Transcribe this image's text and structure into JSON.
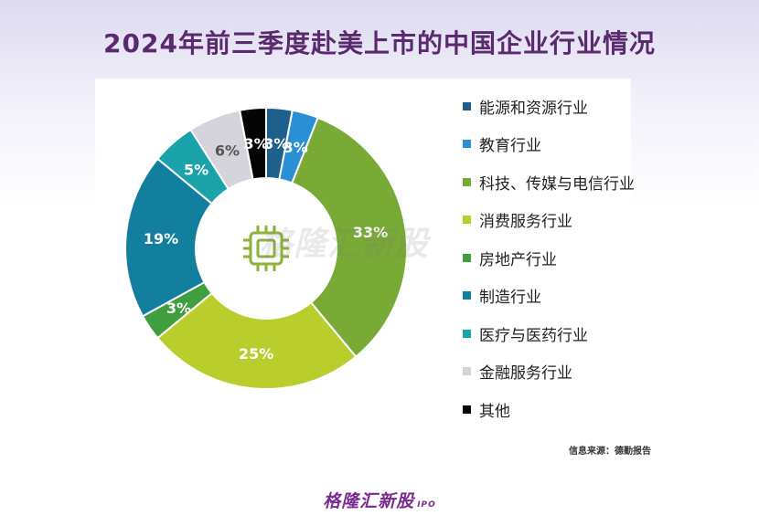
{
  "title": "2024年前三季度赴美上市的中国企业行业情况",
  "source": "信息来源：德勤报告",
  "logo": {
    "main": "格隆汇新股",
    "sub": "IPO"
  },
  "watermark": "格隆汇新股",
  "center_icon": "chip-icon",
  "chart_data": {
    "type": "pie",
    "donut": true,
    "legend_position": "right",
    "label_unit": "%",
    "start": "top, clockwise",
    "series": [
      {
        "name": "能源和资源行业",
        "value": 3,
        "color": "#1f5f8b"
      },
      {
        "name": "教育行业",
        "value": 3,
        "color": "#2b8fd6"
      },
      {
        "name": "科技、传媒与电信行业",
        "value": 33,
        "color": "#7aaa36"
      },
      {
        "name": "消费服务行业",
        "value": 25,
        "color": "#b9cd2c"
      },
      {
        "name": "房地产行业",
        "value": 3,
        "color": "#3f9e3d"
      },
      {
        "name": "制造行业",
        "value": 19,
        "color": "#137f9e"
      },
      {
        "name": "医疗与医药行业",
        "value": 5,
        "color": "#1aa3a8"
      },
      {
        "name": "金融服务行业",
        "value": 6,
        "color": "#d5d4dd"
      },
      {
        "name": "其他",
        "value": 3,
        "color": "#050505"
      }
    ]
  }
}
